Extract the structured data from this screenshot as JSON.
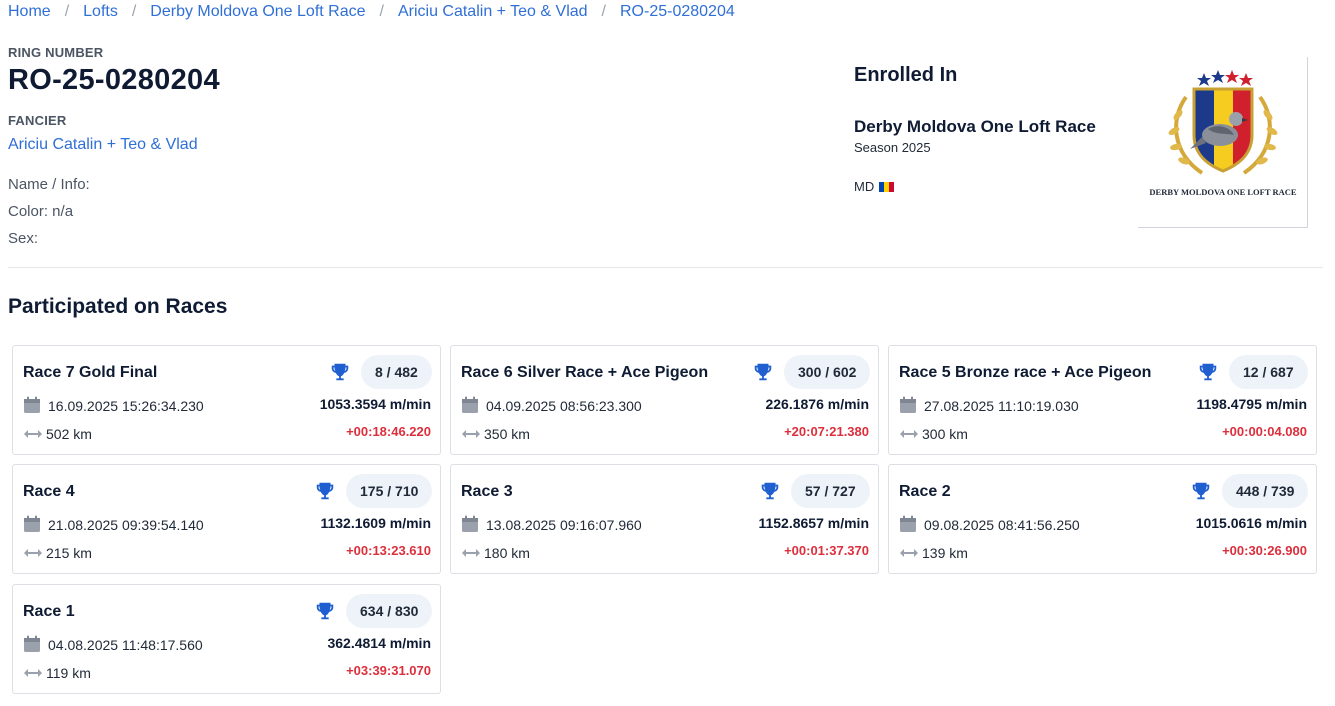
{
  "breadcrumb": [
    {
      "label": "Home"
    },
    {
      "label": "Lofts"
    },
    {
      "label": "Derby Moldova One Loft Race"
    },
    {
      "label": "Ariciu Catalin + Teo & Vlad"
    },
    {
      "label": "RO-25-0280204"
    }
  ],
  "breadcrumb_separator": "/",
  "pigeon": {
    "ring_label": "RING NUMBER",
    "ring_number": "RO-25-0280204",
    "fancier_label": "FANCIER",
    "fancier_name": "Ariciu Catalin + Teo & Vlad",
    "name_info": "Name / Info:",
    "color": "Color: n/a",
    "sex": "Sex:"
  },
  "enrolled": {
    "heading": "Enrolled In",
    "race_name": "Derby Moldova One Loft Race",
    "season": "Season 2025",
    "country": "MD",
    "logo_text": "DERBY MOLDOVA ONE LOFT RACE",
    "flag_colors": [
      "#0046ae",
      "#ffd200",
      "#cc092f"
    ]
  },
  "section_title": "Participated on Races",
  "races": [
    {
      "title": "Race 7 Gold Final",
      "rank": "8 / 482",
      "datetime": "16.09.2025 15:26:34.230",
      "distance": "502 km",
      "speed": "1053.3594 m/min",
      "diff": "+00:18:46.220"
    },
    {
      "title": "Race 6 Silver Race + Ace Pigeon",
      "rank": "300 / 602",
      "datetime": "04.09.2025 08:56:23.300",
      "distance": "350 km",
      "speed": "226.1876 m/min",
      "diff": "+20:07:21.380"
    },
    {
      "title": "Race 5 Bronze race + Ace Pigeon",
      "rank": "12 / 687",
      "datetime": "27.08.2025 11:10:19.030",
      "distance": "300 km",
      "speed": "1198.4795 m/min",
      "diff": "+00:00:04.080"
    },
    {
      "title": "Race 4",
      "rank": "175 / 710",
      "datetime": "21.08.2025 09:39:54.140",
      "distance": "215 km",
      "speed": "1132.1609 m/min",
      "diff": "+00:13:23.610"
    },
    {
      "title": "Race 3",
      "rank": "57 / 727",
      "datetime": "13.08.2025 09:16:07.960",
      "distance": "180 km",
      "speed": "1152.8657 m/min",
      "diff": "+00:01:37.370"
    },
    {
      "title": "Race 2",
      "rank": "448 / 739",
      "datetime": "09.08.2025 08:41:56.250",
      "distance": "139 km",
      "speed": "1015.0616 m/min",
      "diff": "+00:30:26.900"
    },
    {
      "title": "Race 1",
      "rank": "634 / 830",
      "datetime": "04.08.2025 11:48:17.560",
      "distance": "119 km",
      "speed": "362.4814 m/min",
      "diff": "+03:39:31.070"
    }
  ],
  "colors": {
    "link": "#2f6fd6",
    "trophy": "#1f5fd0",
    "diff": "#dc2f3c",
    "pill_bg": "#eef2f9"
  }
}
